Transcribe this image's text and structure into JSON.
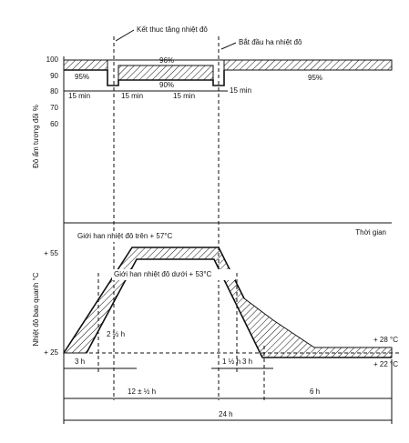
{
  "header": {
    "start_label": "Kết thuc tăng nhiệt đô",
    "end_label": "Bắt đầu ha nhiệt đô"
  },
  "humidity": {
    "axis_title": "Đô ẩm tương đối %",
    "ticks": [
      "100",
      "90",
      "80",
      "70",
      "60"
    ],
    "levels": [
      "95%",
      "96%",
      "90%",
      "95%"
    ],
    "durations": [
      "15 min",
      "15 min",
      "15 min",
      "15 min"
    ],
    "time_label": "Thời gian"
  },
  "temperature": {
    "axis_title": "Nhiệt đô bao quanh °C",
    "ticks": [
      "+ 55",
      "+ 25"
    ],
    "upper_limit": "Giới han nhiệt đô trên + 57°C",
    "lower_limit": "Giới han nhiệt đô dưới + 53°C",
    "high_end": "+ 28 °C",
    "low_end": "+ 22 °C"
  },
  "timeline": {
    "rise": "3 h",
    "rise_low": "2 ½ h",
    "hold": "12 ± ½ h",
    "fall_start": "1 ½ h",
    "fall": "3 h",
    "cool": "6 h",
    "total": "24 h"
  }
}
